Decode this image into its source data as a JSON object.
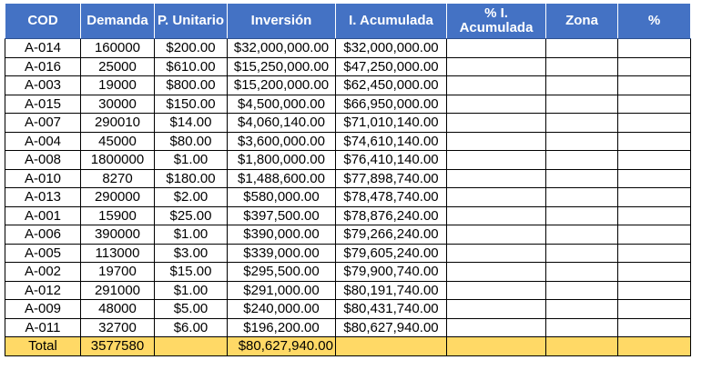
{
  "headers": [
    "COD",
    "Demanda",
    "P. Unitario",
    "Inversión",
    "I. Acumulada",
    "% I. Acumulada",
    "Zona",
    "%"
  ],
  "rows": [
    {
      "cod": "A-014",
      "demanda": "160000",
      "precio": "$200.00",
      "inversion": "$32,000,000.00",
      "acumulada": "$32,000,000.00"
    },
    {
      "cod": "A-016",
      "demanda": "25000",
      "precio": "$610.00",
      "inversion": "$15,250,000.00",
      "acumulada": "$47,250,000.00"
    },
    {
      "cod": "A-003",
      "demanda": "19000",
      "precio": "$800.00",
      "inversion": "$15,200,000.00",
      "acumulada": "$62,450,000.00"
    },
    {
      "cod": "A-015",
      "demanda": "30000",
      "precio": "$150.00",
      "inversion": "$4,500,000.00",
      "acumulada": "$66,950,000.00"
    },
    {
      "cod": "A-007",
      "demanda": "290010",
      "precio": "$14.00",
      "inversion": "$4,060,140.00",
      "acumulada": "$71,010,140.00"
    },
    {
      "cod": "A-004",
      "demanda": "45000",
      "precio": "$80.00",
      "inversion": "$3,600,000.00",
      "acumulada": "$74,610,140.00"
    },
    {
      "cod": "A-008",
      "demanda": "1800000",
      "precio": "$1.00",
      "inversion": "$1,800,000.00",
      "acumulada": "$76,410,140.00"
    },
    {
      "cod": "A-010",
      "demanda": "8270",
      "precio": "$180.00",
      "inversion": "$1,488,600.00",
      "acumulada": "$77,898,740.00"
    },
    {
      "cod": "A-013",
      "demanda": "290000",
      "precio": "$2.00",
      "inversion": "$580,000.00",
      "acumulada": "$78,478,740.00"
    },
    {
      "cod": "A-001",
      "demanda": "15900",
      "precio": "$25.00",
      "inversion": "$397,500.00",
      "acumulada": "$78,876,240.00"
    },
    {
      "cod": "A-006",
      "demanda": "390000",
      "precio": "$1.00",
      "inversion": "$390,000.00",
      "acumulada": "$79,266,240.00"
    },
    {
      "cod": "A-005",
      "demanda": "113000",
      "precio": "$3.00",
      "inversion": "$339,000.00",
      "acumulada": "$79,605,240.00"
    },
    {
      "cod": "A-002",
      "demanda": "19700",
      "precio": "$15.00",
      "inversion": "$295,500.00",
      "acumulada": "$79,900,740.00"
    },
    {
      "cod": "A-012",
      "demanda": "291000",
      "precio": "$1.00",
      "inversion": "$291,000.00",
      "acumulada": "$80,191,740.00"
    },
    {
      "cod": "A-009",
      "demanda": "48000",
      "precio": "$5.00",
      "inversion": "$240,000.00",
      "acumulada": "$80,431,740.00"
    },
    {
      "cod": "A-011",
      "demanda": "32700",
      "precio": "$6.00",
      "inversion": "$196,200.00",
      "acumulada": "$80,627,940.00"
    }
  ],
  "total": {
    "label": "Total",
    "demanda": "3577580",
    "inversion": "$80,627,940.00"
  },
  "colors": {
    "header_bg": "#4472c4",
    "header_text": "#ffffff",
    "total_bg": "#ffd966"
  }
}
